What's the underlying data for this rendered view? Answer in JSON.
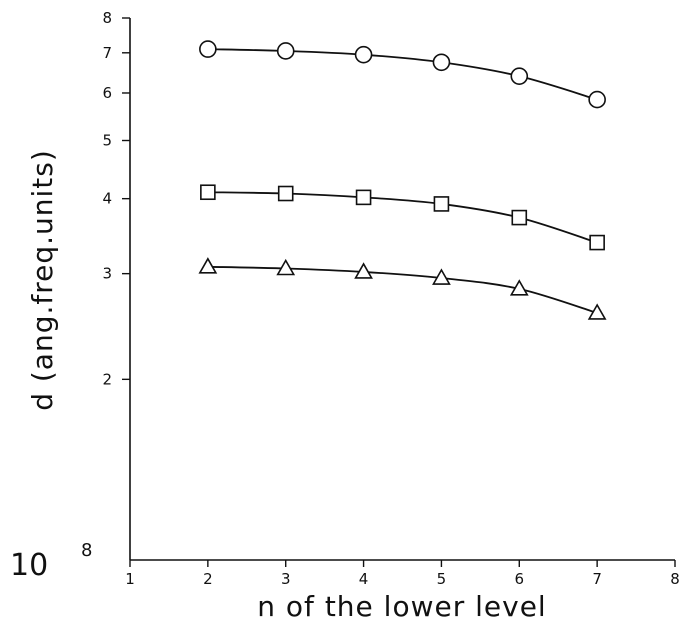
{
  "chart_data": {
    "type": "line",
    "xlabel": "n of the lower level",
    "ylabel": "d (ang.freq.units)",
    "y_scale": "log",
    "xlim": [
      1,
      8
    ],
    "ylim": [
      1.0,
      8.0
    ],
    "x_ticks": [
      "1",
      "2",
      "3",
      "4",
      "5",
      "6",
      "7",
      "8"
    ],
    "y_ticks": [
      {
        "value": 2,
        "label": "2"
      },
      {
        "value": 3,
        "label": "3"
      },
      {
        "value": 4,
        "label": "4"
      },
      {
        "value": 5,
        "label": "5"
      },
      {
        "value": 6,
        "label": "6"
      },
      {
        "value": 7,
        "label": "7"
      },
      {
        "value": 8,
        "label": "8"
      }
    ],
    "y_scale_label": {
      "base": "10",
      "exponent": "8"
    },
    "grid": false,
    "x": [
      2,
      3,
      4,
      5,
      6,
      7
    ],
    "series": [
      {
        "marker": "circle",
        "values": [
          7.1,
          7.05,
          6.95,
          6.75,
          6.4,
          5.85
        ]
      },
      {
        "marker": "square",
        "values": [
          4.1,
          4.08,
          4.02,
          3.92,
          3.72,
          3.38
        ]
      },
      {
        "marker": "triangle",
        "values": [
          3.08,
          3.06,
          3.02,
          2.95,
          2.83,
          2.58
        ]
      }
    ]
  }
}
